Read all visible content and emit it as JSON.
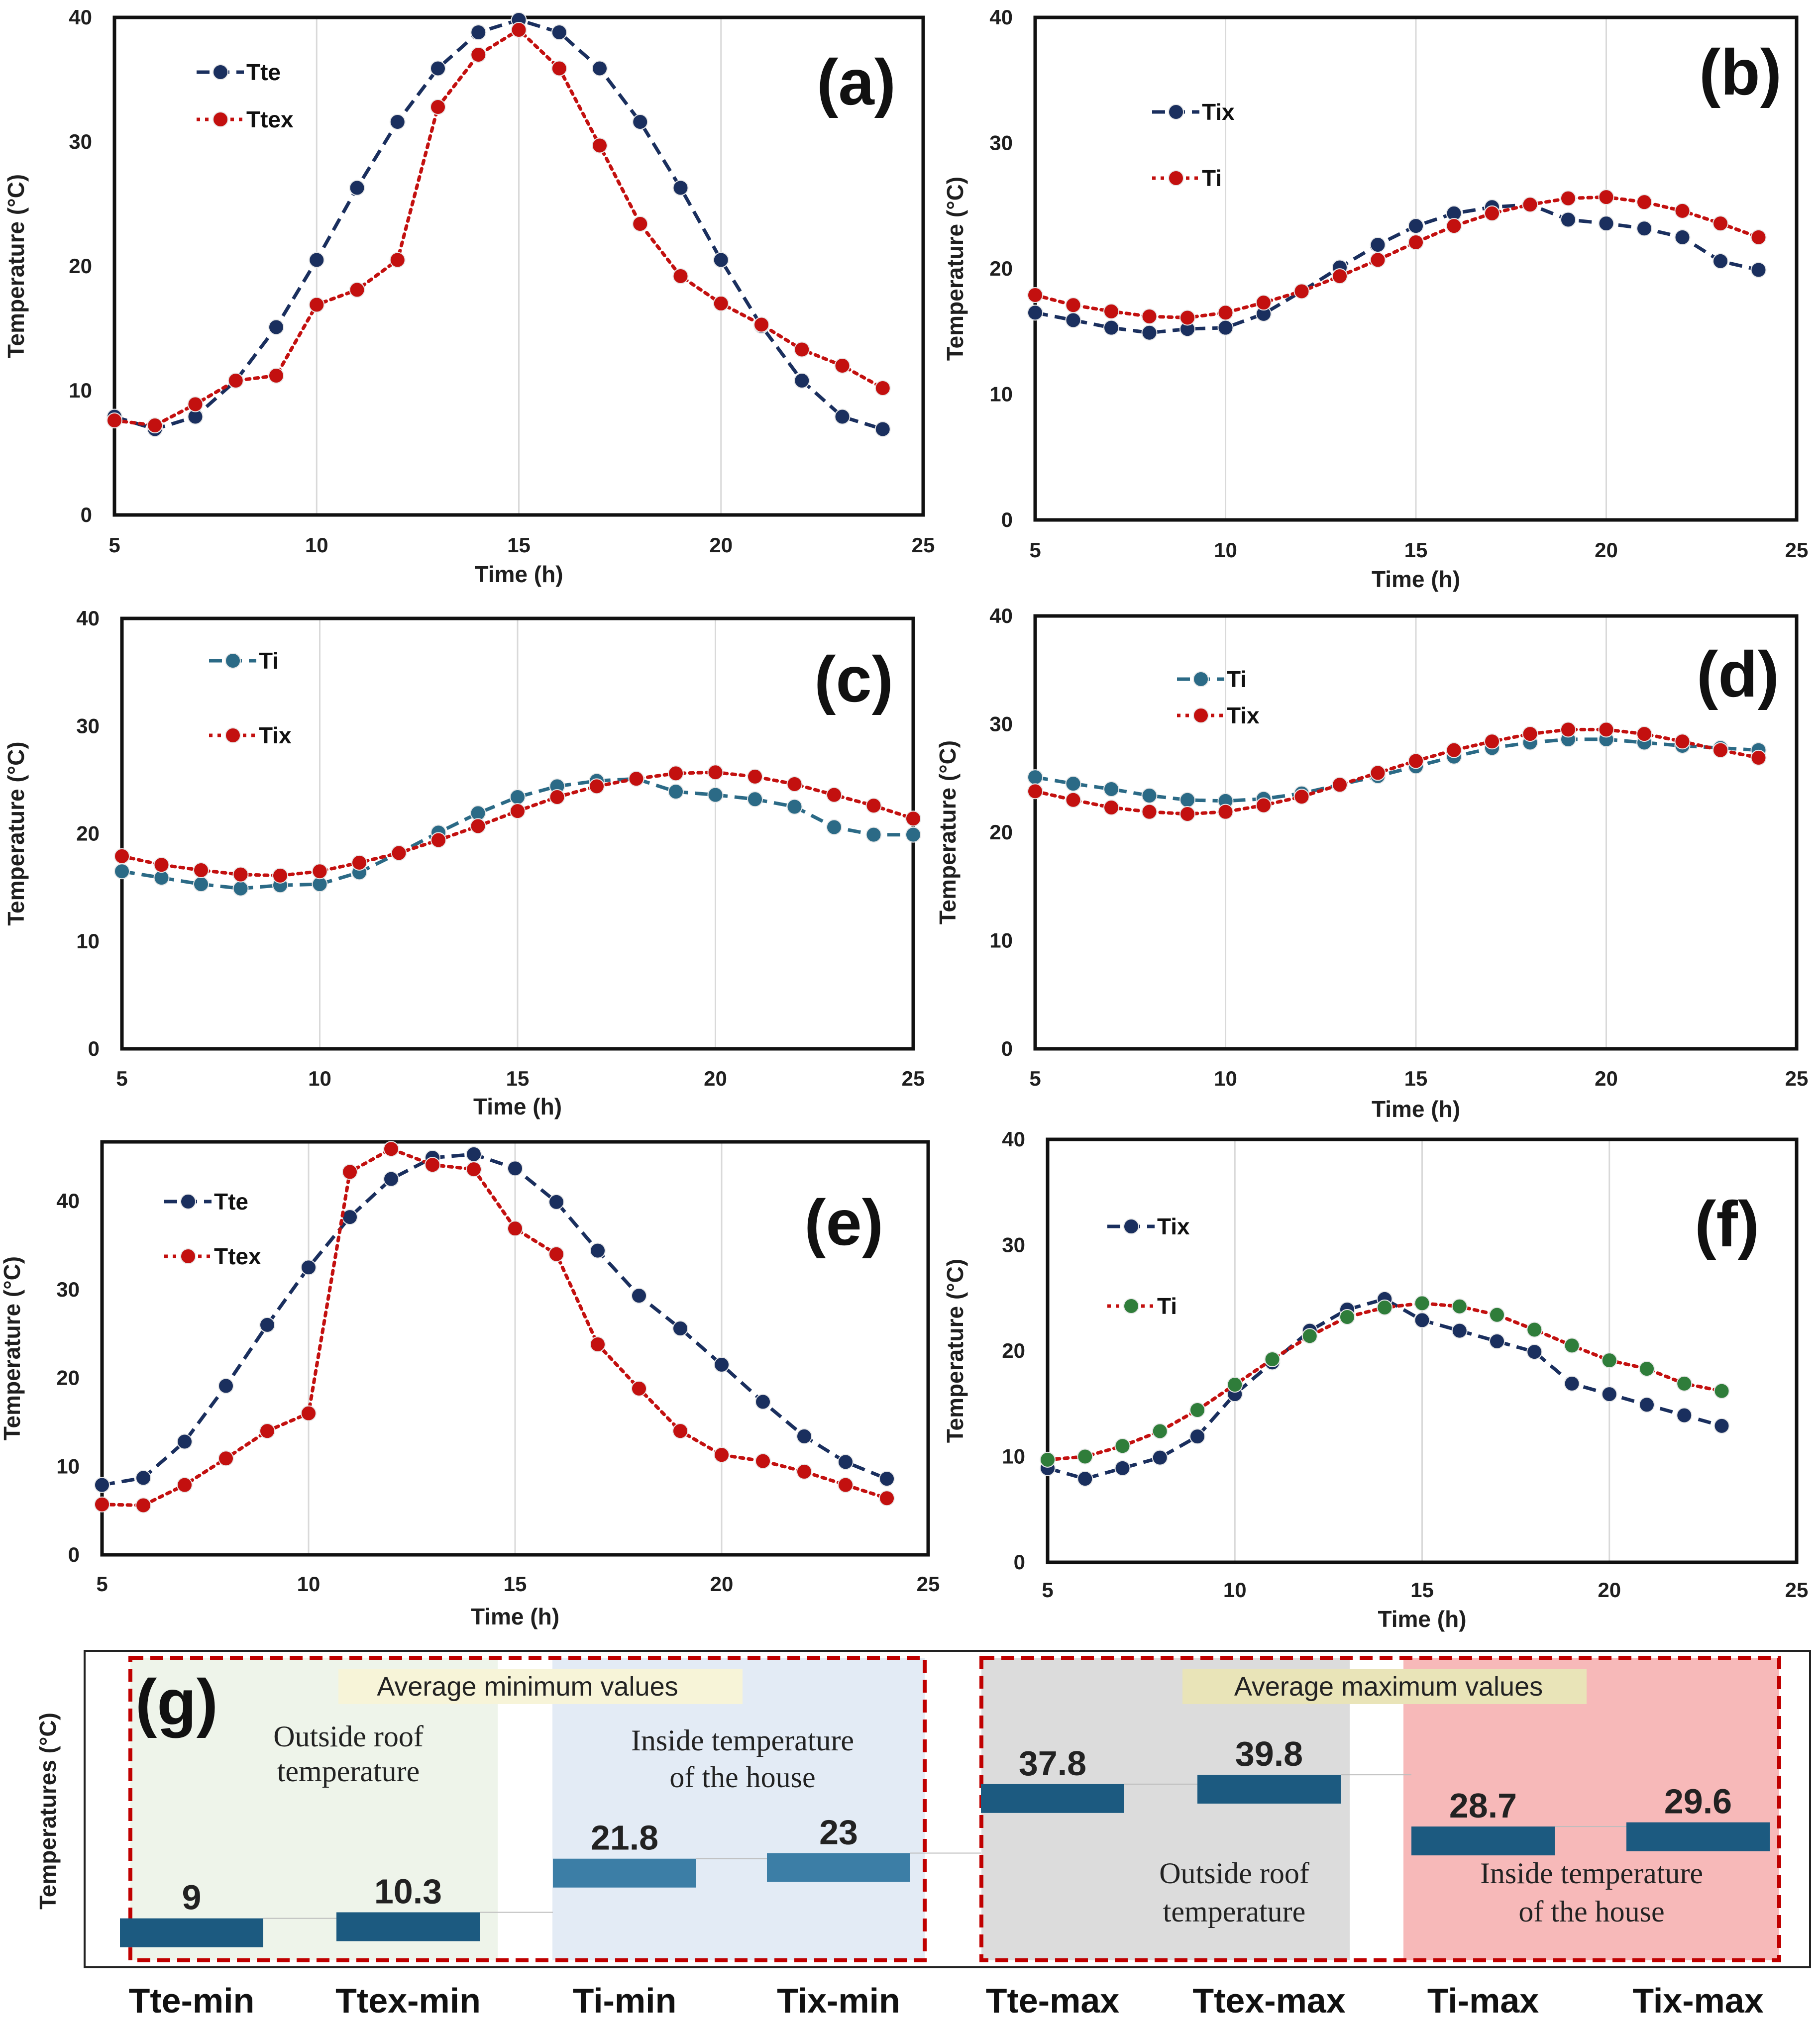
{
  "colors": {
    "navy": "#1a2f5e",
    "red": "#c3100f",
    "teal": "#2b6a86",
    "green": "#2f7d3a",
    "bar_dark": "#1c5a80",
    "bar_light": "#3c7ea6",
    "grid": "#d9d9d9",
    "frame": "#111111",
    "dash_red": "#c00000"
  },
  "chart_data": [
    {
      "id": "a",
      "panel_label": "(a)",
      "type": "line",
      "xlabel": "Time (h)",
      "ylabel": "Temperature (°C)",
      "xlim": [
        5,
        25
      ],
      "ylim": [
        0,
        40
      ],
      "x_ticks": [
        "5",
        "10",
        "15",
        "20",
        "25"
      ],
      "y_ticks": [
        "0",
        "10",
        "20",
        "30",
        "40"
      ],
      "series": [
        {
          "name": "Tte",
          "color": "navy",
          "dot": "navy",
          "style": "dashed",
          "x": [
            5,
            6,
            7,
            8,
            9,
            10,
            11,
            12,
            13,
            14,
            15,
            16,
            17,
            18,
            19,
            20,
            21,
            22,
            23,
            24
          ],
          "y": [
            7.9,
            6.9,
            7.9,
            10.8,
            15.1,
            20.5,
            26.3,
            31.6,
            35.9,
            38.8,
            39.8,
            38.8,
            35.9,
            31.6,
            26.3,
            20.5,
            15.2,
            10.8,
            7.9,
            6.9
          ]
        },
        {
          "name": "Ttex",
          "color": "red",
          "dot": "red",
          "style": "dotted",
          "x": [
            5,
            6,
            7,
            8,
            9,
            10,
            11,
            12,
            13,
            14,
            15,
            16,
            17,
            18,
            19,
            20,
            21,
            22,
            23,
            24
          ],
          "y": [
            7.6,
            7.2,
            8.9,
            10.8,
            11.2,
            16.9,
            18.1,
            20.5,
            32.8,
            37.0,
            39.0,
            35.9,
            29.7,
            23.4,
            19.2,
            17.0,
            15.3,
            13.3,
            12.0,
            10.2
          ]
        }
      ]
    },
    {
      "id": "b",
      "panel_label": "(b)",
      "type": "line",
      "xlabel": "Time (h)",
      "ylabel": "Temperature (°C)",
      "xlim": [
        5,
        25
      ],
      "ylim": [
        0,
        40
      ],
      "x_ticks": [
        "5",
        "10",
        "15",
        "20",
        "25"
      ],
      "y_ticks": [
        "0",
        "10",
        "20",
        "30",
        "40"
      ],
      "series": [
        {
          "name": "Tix",
          "color": "navy",
          "dot": "navy",
          "style": "dashed",
          "x": [
            5,
            6,
            7,
            8,
            9,
            10,
            11,
            12,
            13,
            14,
            15,
            16,
            17,
            18,
            19,
            20,
            21,
            22,
            23,
            24
          ],
          "y": [
            16.5,
            15.9,
            15.3,
            14.9,
            15.2,
            15.3,
            16.4,
            18.2,
            20.1,
            21.9,
            23.4,
            24.4,
            24.9,
            25.1,
            23.9,
            23.6,
            23.2,
            22.5,
            20.6,
            19.9
          ]
        },
        {
          "name": "Ti",
          "color": "red",
          "dot": "red",
          "style": "dotted",
          "x": [
            5,
            6,
            7,
            8,
            9,
            10,
            11,
            12,
            13,
            14,
            15,
            16,
            17,
            18,
            19,
            20,
            21,
            22,
            23,
            24
          ],
          "y": [
            17.9,
            17.1,
            16.6,
            16.2,
            16.1,
            16.5,
            17.3,
            18.2,
            19.4,
            20.7,
            22.1,
            23.4,
            24.4,
            25.1,
            25.6,
            25.7,
            25.3,
            24.6,
            23.6,
            22.5
          ]
        }
      ]
    },
    {
      "id": "c",
      "panel_label": "(c)",
      "type": "line",
      "xlabel": "Time (h)",
      "ylabel": "Temperature (°C)",
      "xlim": [
        5,
        25
      ],
      "ylim": [
        0,
        40
      ],
      "x_ticks": [
        "5",
        "10",
        "15",
        "20",
        "25"
      ],
      "y_ticks": [
        "0",
        "10",
        "20",
        "30",
        "40"
      ],
      "series": [
        {
          "name": "Ti",
          "color": "teal",
          "dot": "teal",
          "style": "dashed",
          "x": [
            5,
            6,
            7,
            8,
            9,
            10,
            11,
            12,
            13,
            14,
            15,
            16,
            17,
            18,
            19,
            20,
            21,
            22,
            23,
            24,
            25
          ],
          "y": [
            16.5,
            15.9,
            15.3,
            14.9,
            15.2,
            15.3,
            16.4,
            18.2,
            20.1,
            21.9,
            23.4,
            24.4,
            24.9,
            25.1,
            23.9,
            23.6,
            23.2,
            22.5,
            20.6,
            19.9,
            19.9
          ]
        },
        {
          "name": "Tix",
          "color": "red",
          "dot": "red",
          "style": "dotted",
          "x": [
            5,
            6,
            7,
            8,
            9,
            10,
            11,
            12,
            13,
            14,
            15,
            16,
            17,
            18,
            19,
            20,
            21,
            22,
            23,
            24,
            25
          ],
          "y": [
            17.9,
            17.1,
            16.6,
            16.2,
            16.1,
            16.5,
            17.3,
            18.2,
            19.4,
            20.7,
            22.1,
            23.4,
            24.4,
            25.1,
            25.6,
            25.7,
            25.3,
            24.6,
            23.6,
            22.6,
            21.4
          ]
        }
      ]
    },
    {
      "id": "d",
      "panel_label": "(d)",
      "type": "line",
      "xlabel": "Time (h)",
      "ylabel": "Temperature (°C)",
      "xlim": [
        5,
        25
      ],
      "ylim": [
        0,
        40
      ],
      "x_ticks": [
        "5",
        "10",
        "15",
        "20",
        "25"
      ],
      "y_ticks": [
        "0",
        "10",
        "20",
        "30",
        "40"
      ],
      "series": [
        {
          "name": "Ti",
          "color": "teal",
          "dot": "teal",
          "style": "dashed",
          "x": [
            5,
            6,
            7,
            8,
            9,
            10,
            11,
            12,
            13,
            14,
            15,
            16,
            17,
            18,
            19,
            20,
            21,
            22,
            23,
            24
          ],
          "y": [
            25.1,
            24.5,
            24.0,
            23.4,
            23.0,
            22.9,
            23.1,
            23.6,
            24.4,
            25.2,
            26.1,
            27.0,
            27.8,
            28.3,
            28.6,
            28.6,
            28.3,
            28.0,
            27.8,
            27.6
          ]
        },
        {
          "name": "Tix",
          "color": "red",
          "dot": "red",
          "style": "dotted",
          "x": [
            5,
            6,
            7,
            8,
            9,
            10,
            11,
            12,
            13,
            14,
            15,
            16,
            17,
            18,
            19,
            20,
            21,
            22,
            23,
            24
          ],
          "y": [
            23.8,
            23.0,
            22.3,
            21.9,
            21.7,
            21.9,
            22.5,
            23.3,
            24.4,
            25.5,
            26.6,
            27.6,
            28.4,
            29.1,
            29.5,
            29.5,
            29.1,
            28.4,
            27.6,
            26.9
          ]
        }
      ]
    },
    {
      "id": "e",
      "panel_label": "(e)",
      "type": "line",
      "xlabel": "Time (h)",
      "ylabel": "Temperature (°C)",
      "xlim": [
        5,
        25
      ],
      "ylim": [
        0,
        46.7
      ],
      "x_ticks": [
        "5",
        "10",
        "15",
        "20",
        "25"
      ],
      "y_ticks": [
        "0",
        "10",
        "20",
        "30",
        "40"
      ],
      "series": [
        {
          "name": "Tte",
          "color": "navy",
          "dot": "navy",
          "style": "dashed",
          "x": [
            5,
            6,
            7,
            8,
            9,
            10,
            11,
            12,
            13,
            14,
            15,
            16,
            17,
            18,
            19,
            20,
            21,
            22,
            23,
            24
          ],
          "y": [
            7.9,
            8.7,
            12.8,
            19.1,
            26.0,
            32.5,
            38.2,
            42.5,
            44.9,
            45.3,
            43.7,
            39.9,
            34.4,
            29.3,
            25.6,
            21.5,
            17.3,
            13.4,
            10.5,
            8.6
          ]
        },
        {
          "name": "Ttex",
          "color": "red",
          "dot": "red",
          "style": "dotted",
          "x": [
            5,
            6,
            7,
            8,
            9,
            10,
            11,
            12,
            13,
            14,
            15,
            16,
            17,
            18,
            19,
            20,
            21,
            22,
            23,
            24
          ],
          "y": [
            5.7,
            5.6,
            7.9,
            10.9,
            14.0,
            16.0,
            43.3,
            45.9,
            44.1,
            43.6,
            36.9,
            34.0,
            23.8,
            18.8,
            14.0,
            11.3,
            10.6,
            9.4,
            7.9,
            6.4
          ]
        }
      ]
    },
    {
      "id": "f",
      "panel_label": "(f)",
      "type": "line",
      "xlabel": "Time (h)",
      "ylabel": "Temperature (°C)",
      "xlim": [
        5,
        25
      ],
      "ylim": [
        0,
        40
      ],
      "x_ticks": [
        "5",
        "10",
        "15",
        "20",
        "25"
      ],
      "y_ticks": [
        "0",
        "10",
        "20",
        "30",
        "40"
      ],
      "series": [
        {
          "name": "Tix",
          "color": "navy",
          "dot": "navy",
          "style": "dashed",
          "x": [
            5,
            6,
            7,
            8,
            9,
            10,
            11,
            12,
            13,
            14,
            15,
            16,
            17,
            18,
            19,
            20,
            21,
            22,
            23
          ],
          "y": [
            8.9,
            7.9,
            8.9,
            9.9,
            11.9,
            15.9,
            18.9,
            21.9,
            23.9,
            24.9,
            22.9,
            21.9,
            20.9,
            19.9,
            16.9,
            15.9,
            14.9,
            13.9,
            12.9
          ]
        },
        {
          "name": "Ti",
          "color": "red",
          "dot": "green",
          "style": "dotted",
          "x": [
            5,
            6,
            7,
            8,
            9,
            10,
            11,
            12,
            13,
            14,
            15,
            16,
            17,
            18,
            19,
            20,
            21,
            22,
            23
          ],
          "y": [
            9.7,
            10.0,
            11.0,
            12.4,
            14.4,
            16.8,
            19.2,
            21.4,
            23.2,
            24.1,
            24.5,
            24.2,
            23.4,
            22.0,
            20.5,
            19.1,
            18.3,
            16.9,
            16.2
          ]
        }
      ]
    },
    {
      "id": "g",
      "panel_label": "(g)",
      "type": "bar",
      "ylabel": "Temperatures (°C)",
      "categories": [
        "Tte-min",
        "Ttex-min",
        "Ti-min",
        "Tix-min",
        "Tte-max",
        "Ttex-max",
        "Ti-max",
        "Tix-max"
      ],
      "values": [
        9,
        10.3,
        21.8,
        23,
        37.8,
        39.8,
        28.7,
        29.6
      ],
      "value_labels": [
        "9",
        "10.3",
        "21.8",
        "23",
        "37.8",
        "39.8",
        "28.7",
        "29.6"
      ],
      "annotations": {
        "avg_min": "Average minimum values",
        "avg_max": "Average maximum values",
        "outside_roof_1": "Outside roof",
        "outside_roof_2": "temperature",
        "inside_house_1": "Inside temperature",
        "inside_house_2": "of the house"
      }
    }
  ]
}
